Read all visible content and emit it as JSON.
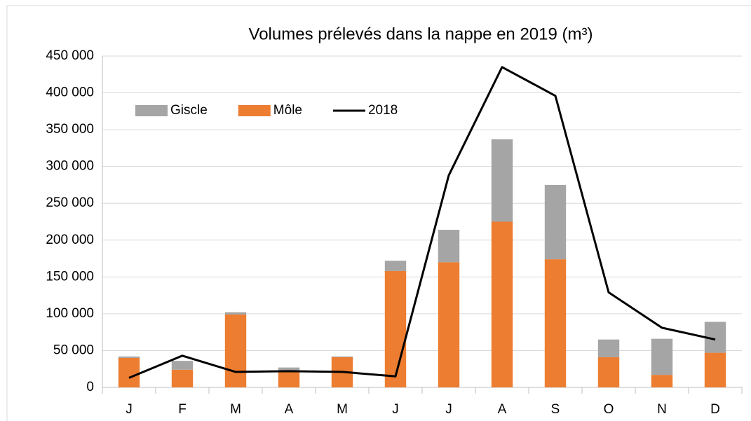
{
  "chart_data": {
    "type": "bar",
    "title": "Volumes prélevés dans la nappe en 2019 (m³)",
    "categories": [
      "J",
      "F",
      "M",
      "A",
      "M",
      "J",
      "J",
      "A",
      "S",
      "O",
      "N",
      "D"
    ],
    "series": [
      {
        "name": "Giscle",
        "type": "bar",
        "color": "#a5a5a5",
        "values": [
          2000,
          12000,
          3000,
          5000,
          1000,
          14000,
          44000,
          112000,
          101000,
          24000,
          49000,
          42000
        ]
      },
      {
        "name": "Môle",
        "type": "bar",
        "color": "#ed7d31",
        "values": [
          40000,
          24000,
          99000,
          22000,
          41000,
          158000,
          170000,
          225000,
          174000,
          41000,
          17000,
          47000
        ]
      },
      {
        "name": "2018",
        "type": "line",
        "color": "#000000",
        "values": [
          13000,
          43000,
          21000,
          22000,
          21000,
          15000,
          288000,
          435000,
          396000,
          129000,
          81000,
          65000
        ]
      }
    ],
    "ylim": [
      0,
      450000
    ],
    "yticks": [
      0,
      {
        "value": 50000,
        "label": "50 000"
      },
      {
        "value": 100000,
        "label": "100 000"
      },
      {
        "value": 150000,
        "label": "150 000"
      },
      {
        "value": 200000,
        "label": "200 000"
      },
      {
        "value": 250000,
        "label": "250 000"
      },
      {
        "value": 300000,
        "label": "300 000"
      },
      {
        "value": 350000,
        "label": "350 000"
      },
      {
        "value": 400000,
        "label": "400 000"
      },
      {
        "value": 450000,
        "label": "450 000"
      }
    ],
    "grid": true,
    "legend": "upper left"
  }
}
